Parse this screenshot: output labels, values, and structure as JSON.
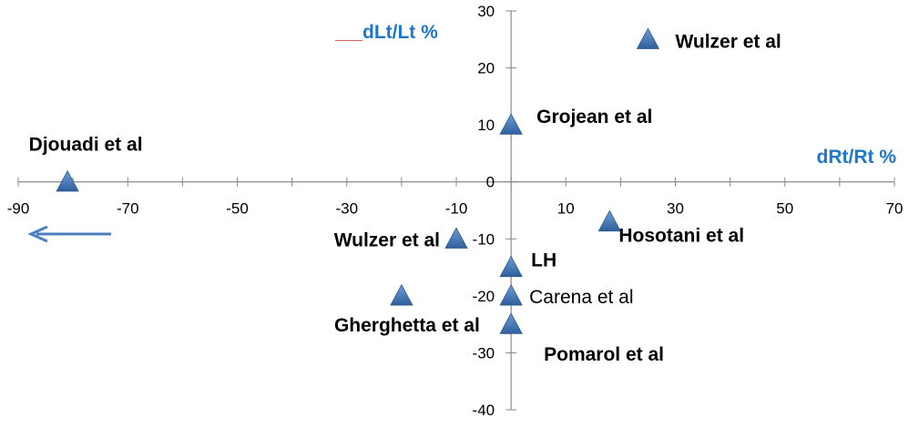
{
  "chart_data": {
    "type": "scatter",
    "xlabel": "dRt/Rt %",
    "ylabel": "dLt/Lt %",
    "xlim": [
      -90,
      70
    ],
    "ylim": [
      -40,
      30
    ],
    "x_ticks": [
      -90,
      -70,
      -50,
      -30,
      -10,
      10,
      30,
      50,
      70
    ],
    "y_ticks": [
      30,
      20,
      10,
      0,
      -10,
      -20,
      -30,
      -40
    ],
    "grid": false,
    "marker": "triangle",
    "marker_color": "#4f81bd",
    "axis_title_color": "#1f77c9",
    "arrow": "pointing left",
    "points": [
      {
        "label": "Wulzer et al",
        "x": 25,
        "y": 25,
        "bold": true
      },
      {
        "label": "Grojean et al",
        "x": 0,
        "y": 10,
        "bold": true
      },
      {
        "label": "Djouadi et al",
        "x": -81,
        "y": 0,
        "bold": true
      },
      {
        "label": "Hosotani et al",
        "x": 18,
        "y": -7,
        "bold": true
      },
      {
        "label": "Wulzer et al",
        "x": -10,
        "y": -10,
        "bold": true
      },
      {
        "label": "LH",
        "x": 0,
        "y": -15,
        "bold": true
      },
      {
        "label": "Carena et al",
        "x": 0,
        "y": -20,
        "bold": false
      },
      {
        "label": "Gherghetta et al",
        "x": -20,
        "y": -20,
        "bold": true
      },
      {
        "label": "Pomarol et al",
        "x": 0,
        "y": -25,
        "bold": true
      }
    ]
  }
}
